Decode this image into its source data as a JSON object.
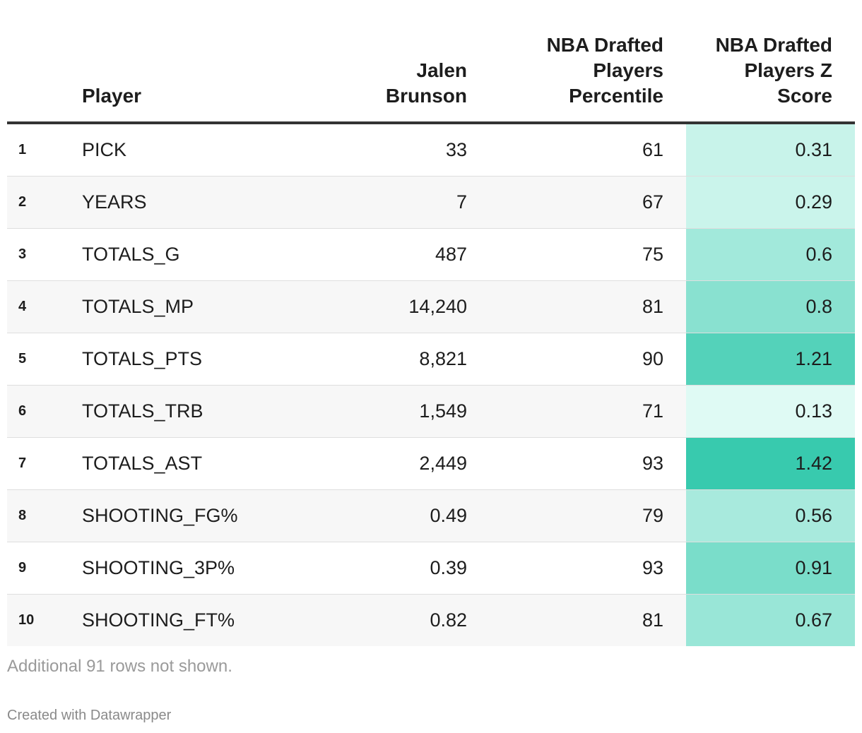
{
  "chart_data": {
    "type": "table",
    "columns": [
      "",
      "Player",
      "Jalen Brunson",
      "NBA Drafted Players Percentile",
      "NBA Drafted Players Z Score"
    ],
    "rows": [
      {
        "index": "1",
        "stat": "PICK",
        "value": "33",
        "percentile": "61",
        "zscore": 0.31
      },
      {
        "index": "2",
        "stat": "YEARS",
        "value": "7",
        "percentile": "67",
        "zscore": 0.29
      },
      {
        "index": "3",
        "stat": "TOTALS_G",
        "value": "487",
        "percentile": "75",
        "zscore": 0.6
      },
      {
        "index": "4",
        "stat": "TOTALS_MP",
        "value": "14,240",
        "percentile": "81",
        "zscore": 0.8
      },
      {
        "index": "5",
        "stat": "TOTALS_PTS",
        "value": "8,821",
        "percentile": "90",
        "zscore": 1.21
      },
      {
        "index": "6",
        "stat": "TOTALS_TRB",
        "value": "1,549",
        "percentile": "71",
        "zscore": 0.13
      },
      {
        "index": "7",
        "stat": "TOTALS_AST",
        "value": "2,449",
        "percentile": "93",
        "zscore": 1.42
      },
      {
        "index": "8",
        "stat": "SHOOTING_FG%",
        "value": "0.49",
        "percentile": "79",
        "zscore": 0.56
      },
      {
        "index": "9",
        "stat": "SHOOTING_3P%",
        "value": "0.39",
        "percentile": "93",
        "zscore": 0.91
      },
      {
        "index": "10",
        "stat": "SHOOTING_FT%",
        "value": "0.82",
        "percentile": "81",
        "zscore": 0.67
      }
    ],
    "heatmap_column": "NBA Drafted Players Z Score",
    "color_low": "#f0fffb",
    "color_high": "#2ec7aa",
    "zscore_range": [
      0,
      1.5
    ]
  },
  "header": {
    "player": "Player",
    "brunson_line1": "Jalen",
    "brunson_line2": "Brunson",
    "pct_line1": "NBA Drafted",
    "pct_line2": "Players",
    "pct_line3": "Percentile",
    "z_line1": "NBA Drafted",
    "z_line2": "Players Z",
    "z_line3": "Score"
  },
  "footer": {
    "note": "Additional 91 rows not shown.",
    "credit": "Created with Datawrapper"
  }
}
